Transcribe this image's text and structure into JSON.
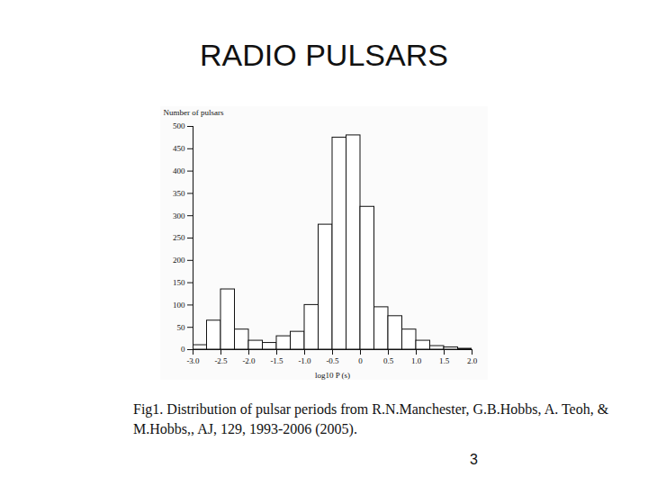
{
  "chart_data": {
    "type": "histogram",
    "title": "RADIO PULSARS",
    "x_label": "log10 P (s)",
    "y_label": "Number of pulsars",
    "bins": [
      -3.0,
      -2.75,
      -2.5,
      -2.25,
      -2.0,
      -1.75,
      -1.5,
      -1.25,
      -1.0,
      -0.75,
      -0.5,
      -0.25,
      0,
      0.25,
      0.5,
      0.75,
      1.0,
      1.25,
      1.5,
      1.75,
      2.0
    ],
    "values": [
      10,
      65,
      135,
      45,
      20,
      15,
      30,
      40,
      100,
      280,
      475,
      480,
      320,
      95,
      75,
      45,
      20,
      8,
      5,
      2
    ],
    "color": "#ffffff",
    "xlim": [
      -3.0,
      2.0
    ],
    "xticks": [
      {
        "value": -3.0,
        "label": "-3.0"
      },
      -2.5,
      {
        "value": -2.0,
        "label": "-2.0"
      },
      -1.5,
      {
        "value": -1.0,
        "label": "-1.0"
      },
      -0.5,
      0,
      0.5,
      {
        "value": 1.0,
        "label": "1.0"
      },
      1.5,
      {
        "value": 2.0,
        "label": "2.0"
      }
    ],
    "ylim": [
      0,
      500
    ],
    "yticks": [
      0,
      50,
      100,
      150,
      200,
      250,
      300,
      350,
      400,
      450,
      500
    ],
    "grid": false
  },
  "slide": {
    "caption": "Fig1. Distribution of pulsar periods from R.N.Manchester, G.B.Hobbs, A. Teoh, & M.Hobbs,, AJ, 129, 1993-2006 (2005).",
    "page_number": "3"
  }
}
